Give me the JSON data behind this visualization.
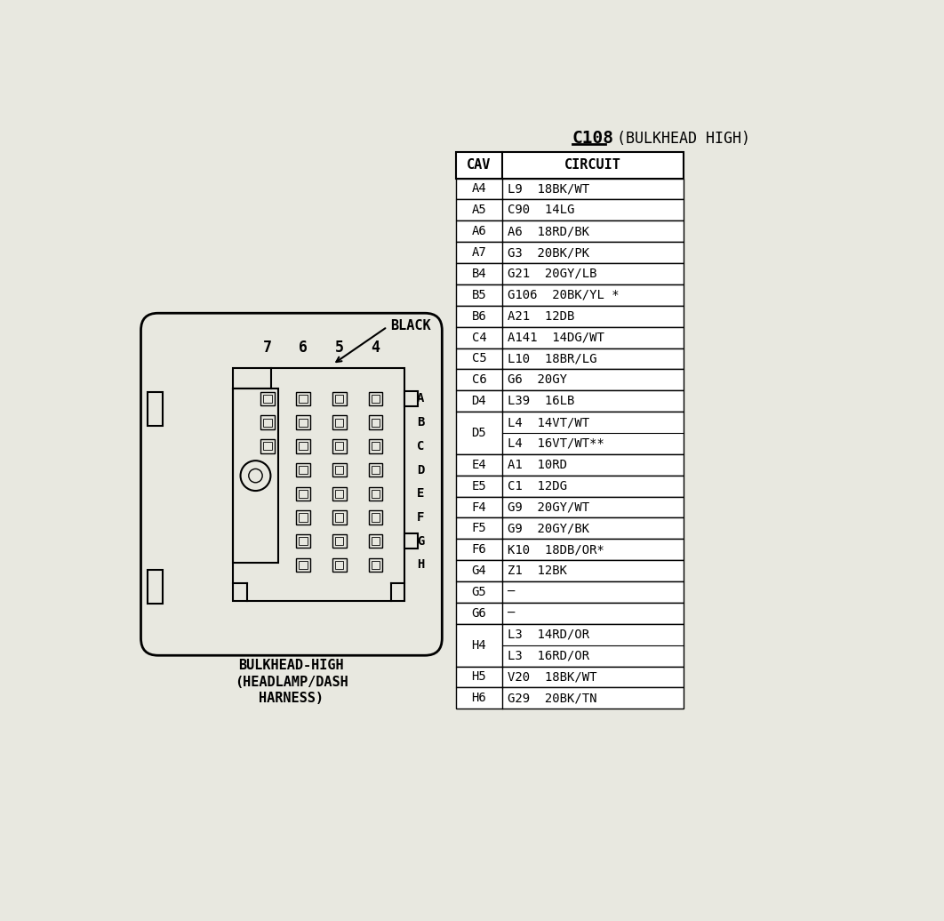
{
  "bg_color": "#e8e8e0",
  "title": "C108",
  "title_suffix": " (BULKHEAD HIGH)",
  "connector_label": "BLACK",
  "connector_sublabel_lines": [
    "BULKHEAD-HIGH",
    "(HEADLAMP/DASH",
    "HARNESS)"
  ],
  "col_nums": [
    "7",
    "6",
    "5",
    "4"
  ],
  "row_letters": [
    "A",
    "B",
    "C",
    "D",
    "E",
    "F",
    "G",
    "H"
  ],
  "table_header": [
    "CAV",
    "CIRCUIT"
  ],
  "display_rows": [
    {
      "cav": "A4",
      "circuit": "L9  18BK/WT",
      "span": 1
    },
    {
      "cav": "A5",
      "circuit": "C90  14LG",
      "span": 1
    },
    {
      "cav": "A6",
      "circuit": "A6  18RD/BK",
      "span": 1
    },
    {
      "cav": "A7",
      "circuit": "G3  20BK/PK",
      "span": 1
    },
    {
      "cav": "B4",
      "circuit": "G21  20GY/LB",
      "span": 1
    },
    {
      "cav": "B5",
      "circuit": "G106  20BK/YL *",
      "span": 1
    },
    {
      "cav": "B6",
      "circuit": "A21  12DB",
      "span": 1
    },
    {
      "cav": "C4",
      "circuit": "A141  14DG/WT",
      "span": 1
    },
    {
      "cav": "C5",
      "circuit": "L10  18BR/LG",
      "span": 1
    },
    {
      "cav": "C6",
      "circuit": "G6  20GY",
      "span": 1
    },
    {
      "cav": "D4",
      "circuit": "L39  16LB",
      "span": 1
    },
    {
      "cav": "D5",
      "circuit": "L4  14VT/WT\nL4  16VT/WT**",
      "span": 2
    },
    {
      "cav": "E4",
      "circuit": "A1  10RD",
      "span": 1
    },
    {
      "cav": "E5",
      "circuit": "C1  12DG",
      "span": 1
    },
    {
      "cav": "F4",
      "circuit": "G9  20GY/WT",
      "span": 1
    },
    {
      "cav": "F5",
      "circuit": "G9  20GY/BK",
      "span": 1
    },
    {
      "cav": "F6",
      "circuit": "K10  18DB/OR*",
      "span": 1
    },
    {
      "cav": "G4",
      "circuit": "Z1  12BK",
      "span": 1
    },
    {
      "cav": "G5",
      "circuit": "—",
      "span": 1
    },
    {
      "cav": "G6",
      "circuit": "—",
      "span": 1
    },
    {
      "cav": "H4",
      "circuit": "L3  14RD/OR\nL3  16RD/OR",
      "span": 2
    },
    {
      "cav": "H5",
      "circuit": "V20  18BK/WT",
      "span": 1
    },
    {
      "cav": "H6",
      "circuit": "G29  20BK/TN",
      "span": 1
    }
  ]
}
